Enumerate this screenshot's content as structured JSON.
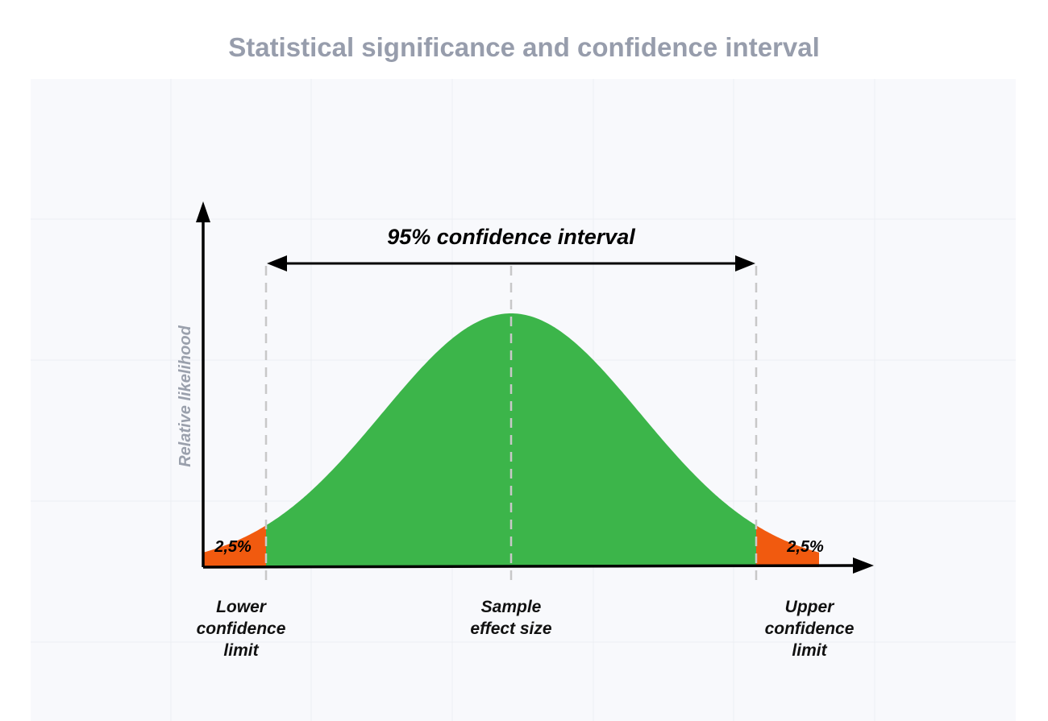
{
  "title": "Statistical significance and confidence interval",
  "interval_label": "95% confidence interval",
  "y_axis_label": "Relative likelihood",
  "tail_left_label": "2,5%",
  "tail_right_label": "2,5%",
  "lower_limit_label": "Lower\nconfidence\nlimit",
  "sample_effect_label": "Sample\neffect size",
  "upper_limit_label": "Upper\nconfidence\nlimit",
  "colors": {
    "curve_fill": "#3cb54a",
    "tail_fill": "#f15a0f",
    "axis": "#000000",
    "dashed_line": "#c8c8c8",
    "title": "#979dac",
    "y_label": "#9aa0ac",
    "grid_bg": "#f8f9fc",
    "grid_line": "#eceef3"
  }
}
